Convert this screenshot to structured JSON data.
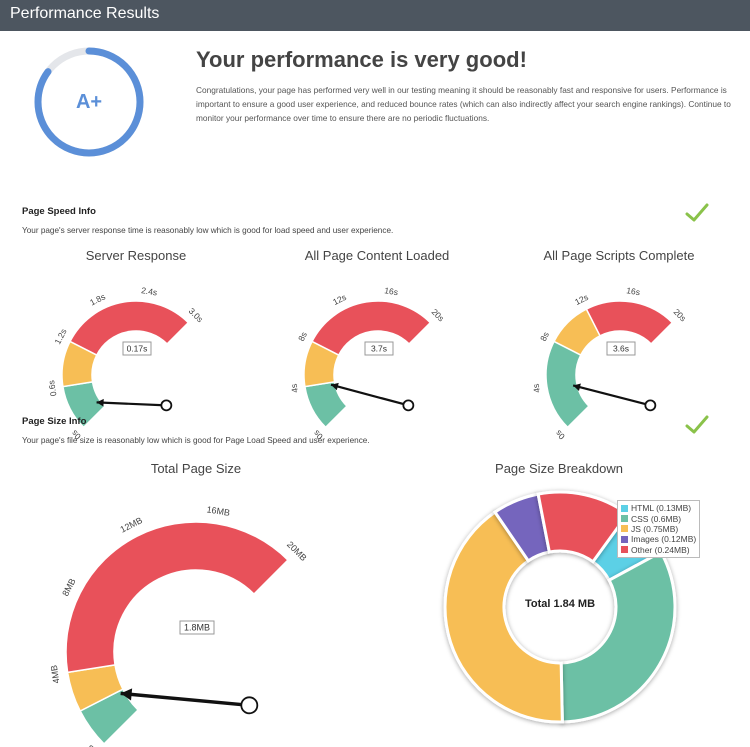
{
  "header": {
    "title": "Performance Results"
  },
  "grade": {
    "value": "A+",
    "color": "#5b8fd8",
    "progress": 0.85
  },
  "headline": "Your performance is very good!",
  "summary": "Congratulations, your page has performed very well in our testing meaning it should be reasonably fast and responsive for users. Performance is important to ensure a good user experience, and reduced bounce rates (which can also indirectly affect your search engine rankings). Continue to monitor your performance over time to ensure there are no periodic fluctuations.",
  "speed_section": {
    "title": "Page Speed Info",
    "description": "Your page's server response time is reasonably low which is good for load speed and user experience.",
    "status_icon": "check-icon"
  },
  "size_section": {
    "title": "Page Size Info",
    "description": "Your page's file size is reasonably low which is good for Page Load Speed and user experience.",
    "status_icon": "check-icon"
  },
  "colors": {
    "green": "#6cc0a5",
    "yellow": "#f7be55",
    "red": "#e8515a",
    "blue": "#5bd0e6",
    "purple": "#7565bd",
    "check": "#8ac24a"
  },
  "gauges": [
    {
      "id": "server",
      "title": "Server Response",
      "min": 0,
      "max": 3,
      "bands": [
        [
          0,
          0.6,
          "green"
        ],
        [
          0.6,
          1.2,
          "yellow"
        ],
        [
          1.2,
          3,
          "red"
        ]
      ],
      "ticks": [
        {
          "v": 0,
          "label": "0s"
        },
        {
          "v": 0.6,
          "label": "0.6s"
        },
        {
          "v": 1.2,
          "label": "1.2s"
        },
        {
          "v": 1.8,
          "label": "1.8s"
        },
        {
          "v": 2.4,
          "label": "2.4s"
        },
        {
          "v": 3,
          "label": "3.0s"
        }
      ],
      "value": 0.17,
      "value_label": "0.17s"
    },
    {
      "id": "content",
      "title": "All Page Content Loaded",
      "min": 0,
      "max": 20,
      "bands": [
        [
          0,
          4,
          "green"
        ],
        [
          4,
          8,
          "yellow"
        ],
        [
          8,
          20,
          "red"
        ]
      ],
      "ticks": [
        {
          "v": 0,
          "label": "0s"
        },
        {
          "v": 4,
          "label": "4s"
        },
        {
          "v": 8,
          "label": "8s"
        },
        {
          "v": 12,
          "label": "12s"
        },
        {
          "v": 16,
          "label": "16s"
        },
        {
          "v": 20,
          "label": "20s"
        }
      ],
      "value": 3.7,
      "value_label": "3.7s"
    },
    {
      "id": "scripts",
      "title": "All Page Scripts Complete",
      "min": 0,
      "max": 20,
      "bands": [
        [
          0,
          8,
          "green"
        ],
        [
          8,
          12,
          "yellow"
        ],
        [
          12,
          20,
          "red"
        ]
      ],
      "ticks": [
        {
          "v": 0,
          "label": "0s"
        },
        {
          "v": 4,
          "label": "4s"
        },
        {
          "v": 8,
          "label": "8s"
        },
        {
          "v": 12,
          "label": "12s"
        },
        {
          "v": 16,
          "label": "16s"
        },
        {
          "v": 20,
          "label": "20s"
        }
      ],
      "value": 3.6,
      "value_label": "3.6s"
    },
    {
      "id": "size",
      "title": "Total Page Size",
      "min": 0,
      "max": 20,
      "bands": [
        [
          0,
          2,
          "green"
        ],
        [
          2,
          4,
          "yellow"
        ],
        [
          4,
          20,
          "red"
        ]
      ],
      "ticks": [
        {
          "v": 0,
          "label": "0MB"
        },
        {
          "v": 4,
          "label": "4MB"
        },
        {
          "v": 8,
          "label": "8MB"
        },
        {
          "v": 12,
          "label": "12MB"
        },
        {
          "v": 16,
          "label": "16MB"
        },
        {
          "v": 20,
          "label": "20MB"
        }
      ],
      "value": 1.8,
      "value_label": "1.8MB"
    }
  ],
  "chart_data": {
    "type": "pie",
    "title": "Page Size Breakdown",
    "center_label": "Total 1.84 MB",
    "series": [
      {
        "name": "HTML (0.13MB)",
        "value": 0.13,
        "color": "#5bd0e6"
      },
      {
        "name": "CSS (0.6MB)",
        "value": 0.6,
        "color": "#6cc0a5"
      },
      {
        "name": "JS (0.75MB)",
        "value": 0.75,
        "color": "#f7be55"
      },
      {
        "name": "Images (0.12MB)",
        "value": 0.12,
        "color": "#7565bd"
      },
      {
        "name": "Other (0.24MB)",
        "value": 0.24,
        "color": "#e8515a"
      }
    ]
  }
}
